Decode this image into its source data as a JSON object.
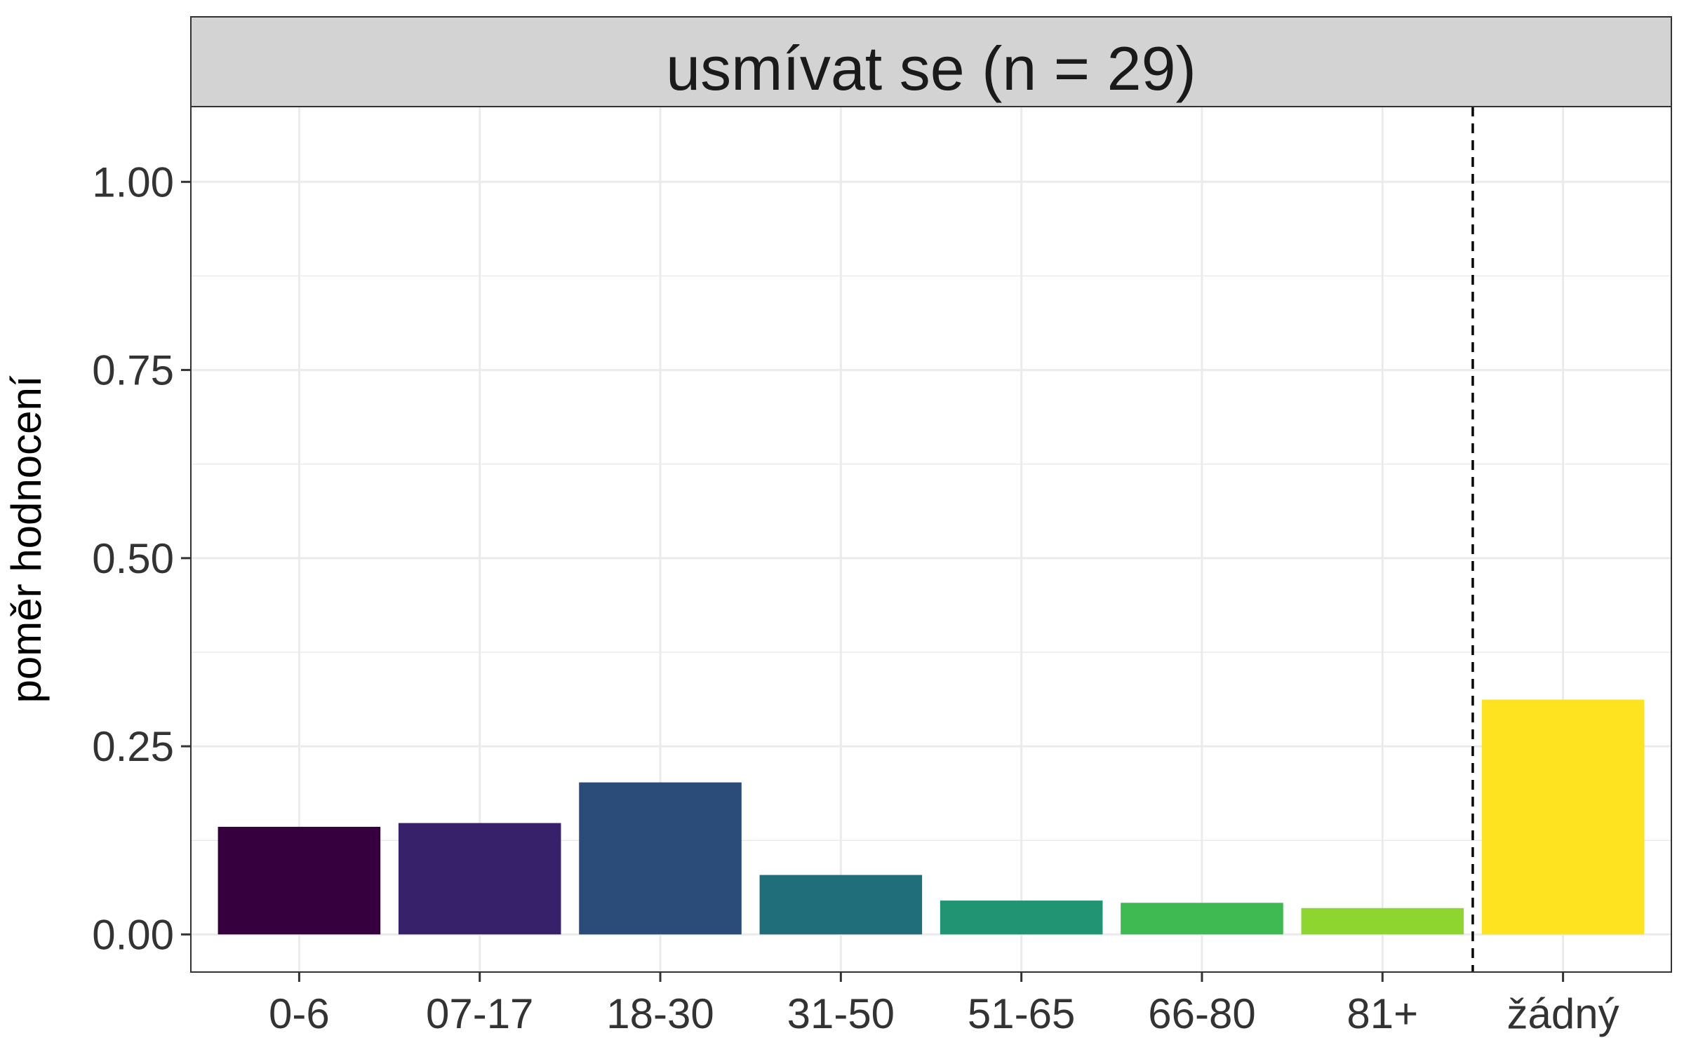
{
  "chart_data": {
    "type": "bar",
    "title": "usmívat se (n = 29)",
    "xlabel": "",
    "ylabel": "poměr hodnocení",
    "categories": [
      "0-6",
      "07-17",
      "18-30",
      "31-50",
      "51-65",
      "66-80",
      "81+",
      "žádný"
    ],
    "values": [
      0.143,
      0.148,
      0.202,
      0.079,
      0.045,
      0.042,
      0.035,
      0.312
    ],
    "colors": [
      "#35003D",
      "#37216B",
      "#2B4B78",
      "#1F6E7A",
      "#219573",
      "#3FBA53",
      "#8ED52F",
      "#FDE320"
    ],
    "yticks": [
      "0.00",
      "0.25",
      "0.50",
      "0.75",
      "1.00"
    ],
    "ylim": [
      -0.05,
      1.1
    ],
    "separator": "dashed vertical line between 81+ and žádný",
    "grid": true,
    "legend": "none"
  }
}
